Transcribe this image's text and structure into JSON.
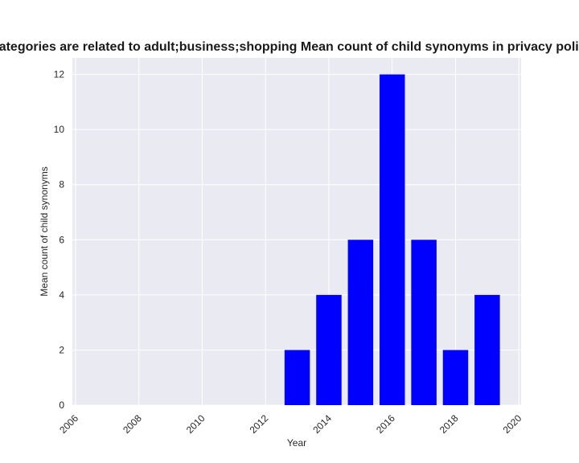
{
  "chart_data": {
    "type": "bar",
    "title": "Categories are related to adult;business;shopping Mean count of child synonyms in privacy policies",
    "xlabel": "Year",
    "ylabel": "Mean count of child synonyms",
    "x": [
      2013,
      2014,
      2015,
      2016,
      2017,
      2018,
      2019
    ],
    "values": [
      2,
      4,
      6,
      12,
      6,
      2,
      4
    ],
    "xlim": [
      2006,
      2020
    ],
    "ylim": [
      0,
      12.6
    ],
    "xticks": [
      2006,
      2008,
      2010,
      2012,
      2014,
      2016,
      2018,
      2020
    ],
    "yticks": [
      0,
      2,
      4,
      6,
      8,
      10,
      12
    ],
    "bar_color": "#0000ff",
    "background_color": "#eaeaf2",
    "grid": true
  }
}
